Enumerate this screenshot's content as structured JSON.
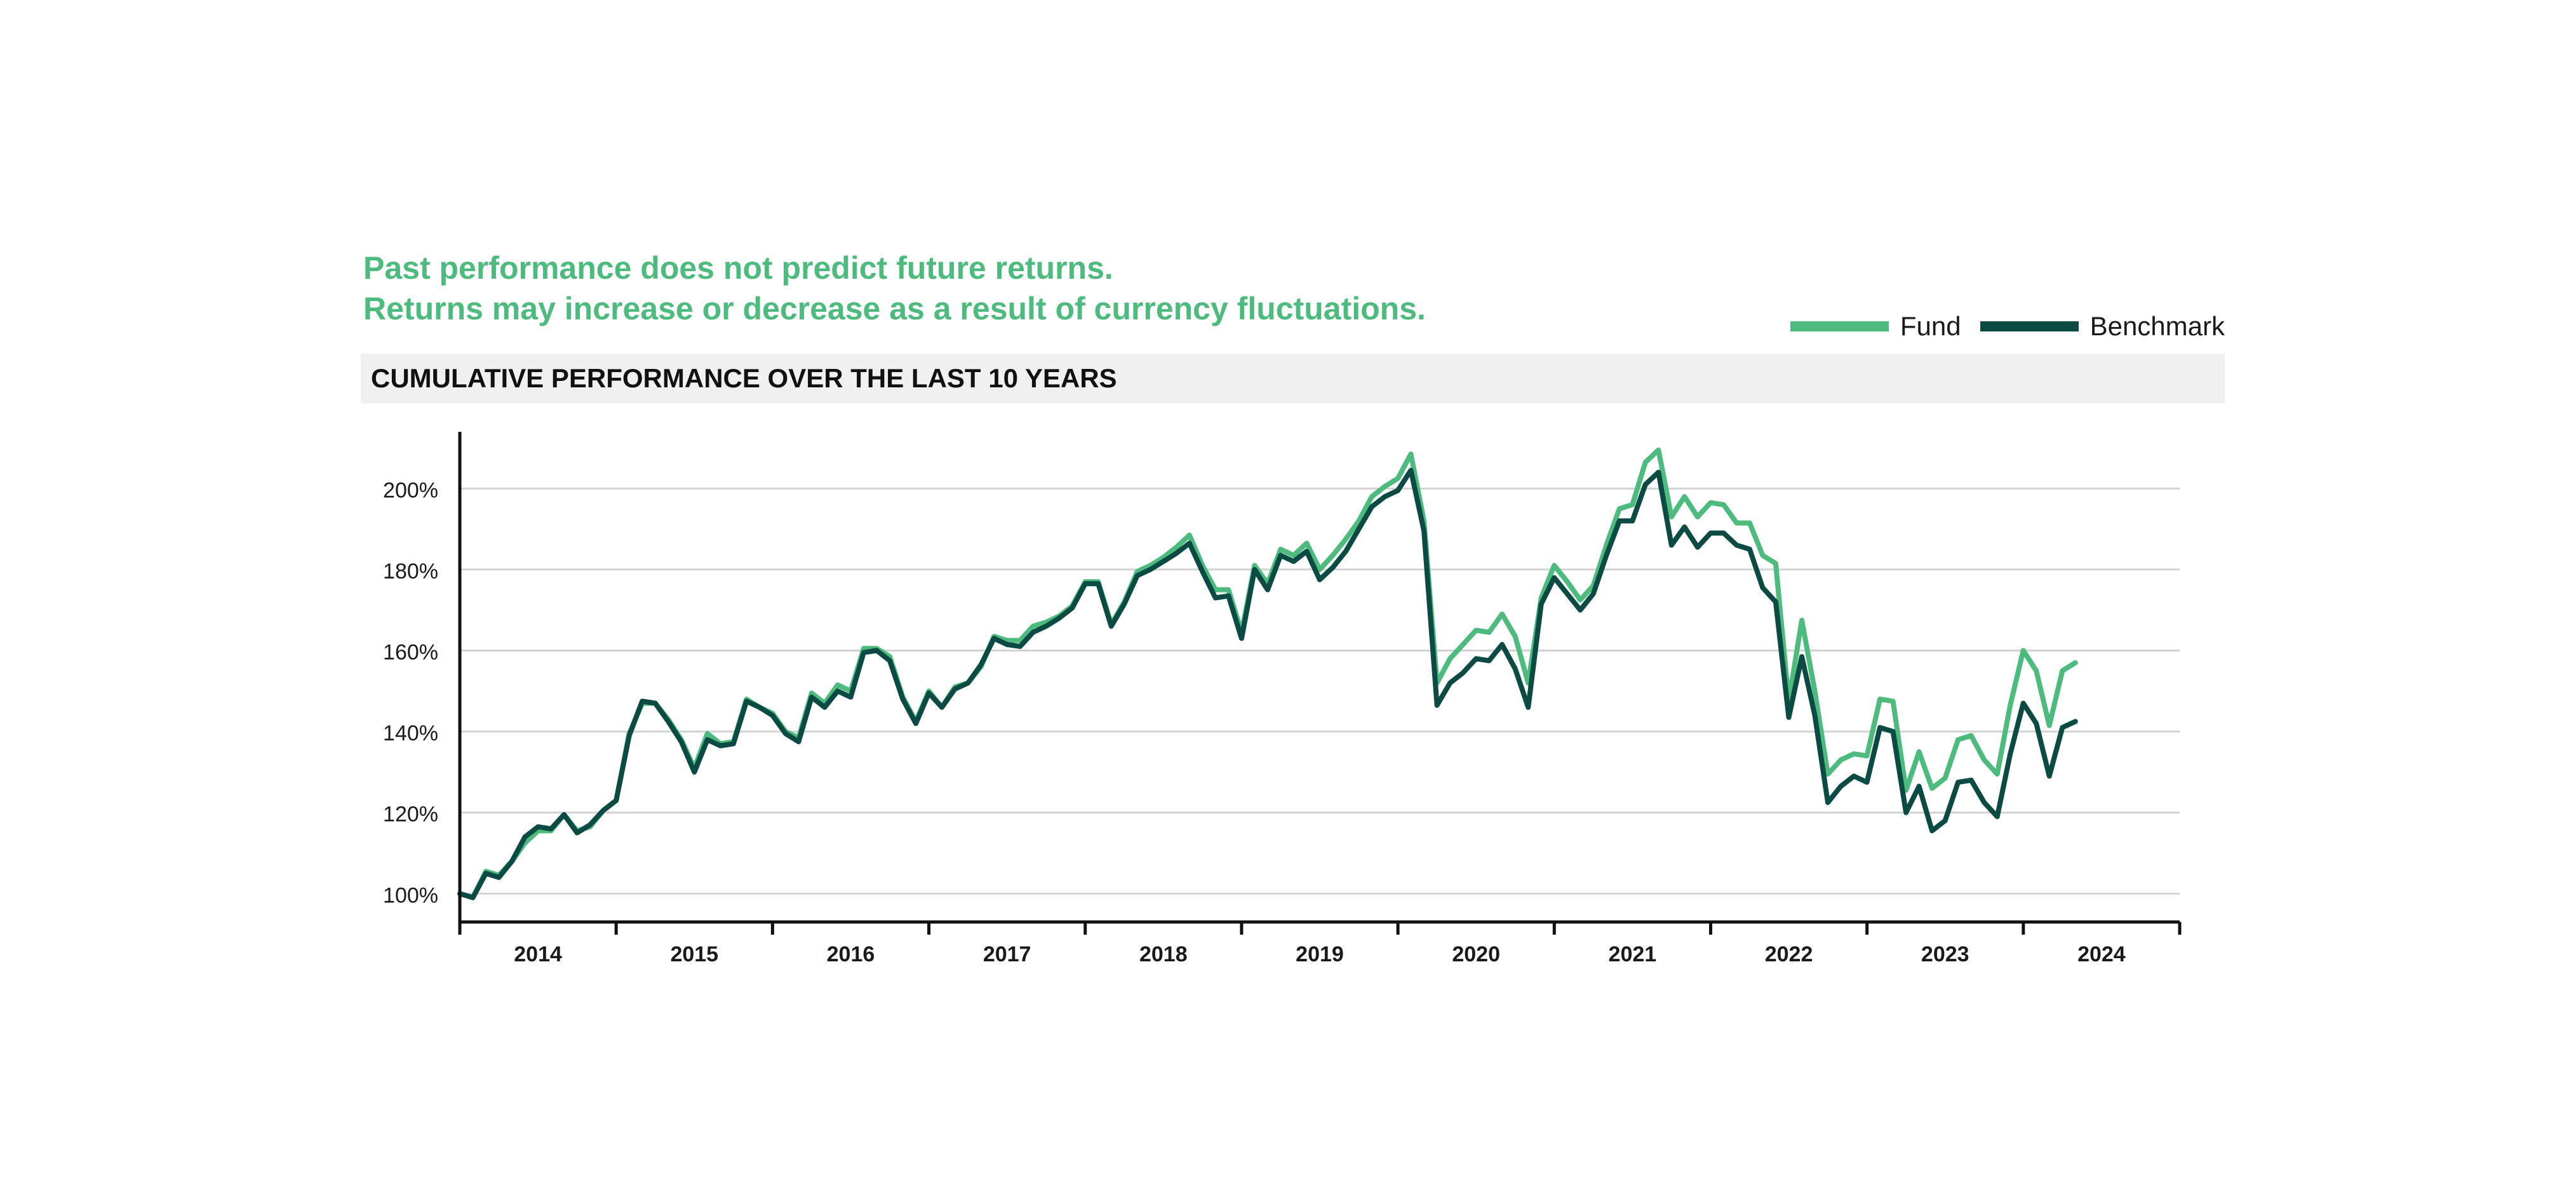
{
  "disclaimer": {
    "line1": "Past performance does not predict future returns.",
    "line2": "Returns may increase or decrease as a result of currency fluctuations."
  },
  "colors": {
    "fund": "#4dbb7d",
    "benchmark": "#0c4b43",
    "grid": "#d2d2d2",
    "axis": "#111111"
  },
  "chart_data": {
    "type": "line",
    "title": "CUMULATIVE PERFORMANCE OVER THE LAST 10 YEARS",
    "xlabel": "",
    "ylabel": "",
    "ylim": [
      93,
      214
    ],
    "xlim": [
      2013.5,
      2024.5
    ],
    "yticks": [
      100,
      120,
      140,
      160,
      180,
      200
    ],
    "ytick_labels": [
      "100%",
      "120%",
      "140%",
      "160%",
      "180%",
      "200%"
    ],
    "xtick_labels": [
      "2014",
      "2015",
      "2016",
      "2017",
      "2018",
      "2019",
      "2020",
      "2021",
      "2022",
      "2023",
      "2024"
    ],
    "legend_position": "top-right",
    "x_start": 2013.5,
    "x_step": 0.08333,
    "series": [
      {
        "name": "Fund",
        "values": [
          100,
          99,
          105.5,
          104.5,
          108,
          112.5,
          115.5,
          115.5,
          119.5,
          115.5,
          116.5,
          120.5,
          123,
          139.5,
          147,
          147,
          143,
          138,
          131,
          139.5,
          137,
          137.5,
          148,
          146,
          144.5,
          140,
          138.5,
          149.5,
          147,
          151.5,
          150,
          160.5,
          160.5,
          158.5,
          148.5,
          142.5,
          150,
          146,
          151,
          152,
          156,
          163.5,
          162.5,
          162.5,
          166,
          167,
          168.5,
          171,
          177,
          177,
          166.5,
          172,
          179.5,
          181,
          183,
          185.5,
          188.5,
          181,
          175,
          175,
          164.5,
          181,
          176.5,
          185,
          183.5,
          186.5,
          180,
          183.5,
          187.5,
          192,
          198,
          200.5,
          202.5,
          208.5,
          192,
          152,
          158,
          161.5,
          165,
          164.5,
          169,
          163.5,
          152,
          173,
          181,
          177,
          172.5,
          176,
          186,
          195,
          196,
          206.5,
          209.5,
          193,
          198,
          193,
          196.5,
          196,
          191.5,
          191.5,
          183.5,
          181.5,
          147.5,
          167.5,
          150,
          129.5,
          133,
          134.5,
          134,
          148,
          147.5,
          125.5,
          135,
          126,
          128.5,
          138,
          139,
          133,
          129.5,
          146.5,
          160,
          155,
          141.5,
          155,
          157
        ]
      },
      {
        "name": "Benchmark",
        "values": [
          100,
          99,
          105,
          104,
          108,
          114,
          116.5,
          116,
          119.5,
          115,
          117,
          120.5,
          123,
          139,
          147.5,
          147,
          142.5,
          137.5,
          130,
          138,
          136.5,
          137,
          147.5,
          146,
          144,
          139.5,
          137.5,
          148.5,
          146,
          150,
          148.5,
          159.5,
          160,
          157.5,
          148,
          142,
          149.5,
          146,
          150.5,
          152,
          156.5,
          163,
          161.5,
          161,
          164.5,
          166,
          168,
          170.5,
          176.5,
          176.5,
          166,
          171.5,
          178.5,
          180,
          182,
          184,
          186.5,
          179.5,
          173,
          173.5,
          163,
          180,
          175,
          183.5,
          182,
          184.5,
          177.5,
          180.5,
          184.5,
          190,
          195.5,
          198,
          199.5,
          204.5,
          189.5,
          146.5,
          152,
          154.5,
          158,
          157.5,
          161.5,
          155.5,
          146,
          171.5,
          178,
          174,
          170,
          174,
          183.5,
          192,
          192,
          201,
          204,
          186,
          190.5,
          185.5,
          189,
          189,
          186,
          185,
          175.5,
          172,
          143.5,
          158.5,
          144,
          122.5,
          126.5,
          129,
          127.5,
          141,
          140,
          120,
          126.5,
          115.5,
          118,
          127.5,
          128,
          122.5,
          119,
          134.5,
          147,
          142,
          129,
          141,
          142.5
        ]
      }
    ]
  }
}
